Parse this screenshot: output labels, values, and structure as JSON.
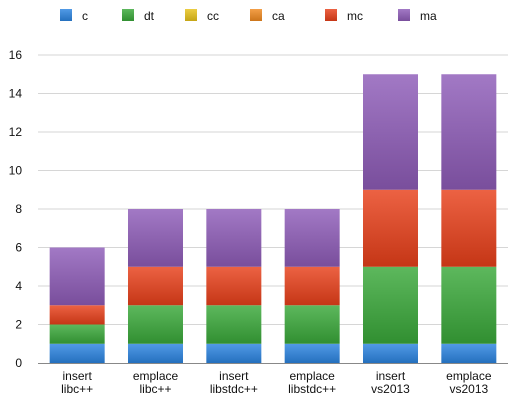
{
  "chart_data": {
    "type": "bar",
    "stacked": true,
    "categories": [
      [
        "insert",
        "libc++"
      ],
      [
        "emplace",
        "libc++"
      ],
      [
        "insert",
        "libstdc++"
      ],
      [
        "emplace",
        "libstdc++"
      ],
      [
        "insert",
        "vs2013"
      ],
      [
        "emplace",
        "vs2013"
      ]
    ],
    "series": [
      {
        "name": "c",
        "color": "#2b84e0",
        "values": [
          1,
          1,
          1,
          1,
          1,
          1
        ]
      },
      {
        "name": "dt",
        "color": "#3aa83a",
        "values": [
          1,
          2,
          2,
          2,
          4,
          4
        ]
      },
      {
        "name": "cc",
        "color": "#e8c21a",
        "values": [
          0,
          0,
          0,
          0,
          0,
          0
        ]
      },
      {
        "name": "ca",
        "color": "#f08a20",
        "values": [
          0,
          0,
          0,
          0,
          0,
          0
        ]
      },
      {
        "name": "mc",
        "color": "#e8401a",
        "values": [
          1,
          2,
          2,
          2,
          4,
          4
        ]
      },
      {
        "name": "ma",
        "color": "#8e5cb8",
        "values": [
          3,
          3,
          3,
          3,
          6,
          6
        ]
      }
    ],
    "ylim": [
      0,
      16
    ],
    "yticks": [
      0,
      2,
      4,
      6,
      8,
      10,
      12,
      14,
      16
    ],
    "grid": true,
    "legend": "top"
  }
}
